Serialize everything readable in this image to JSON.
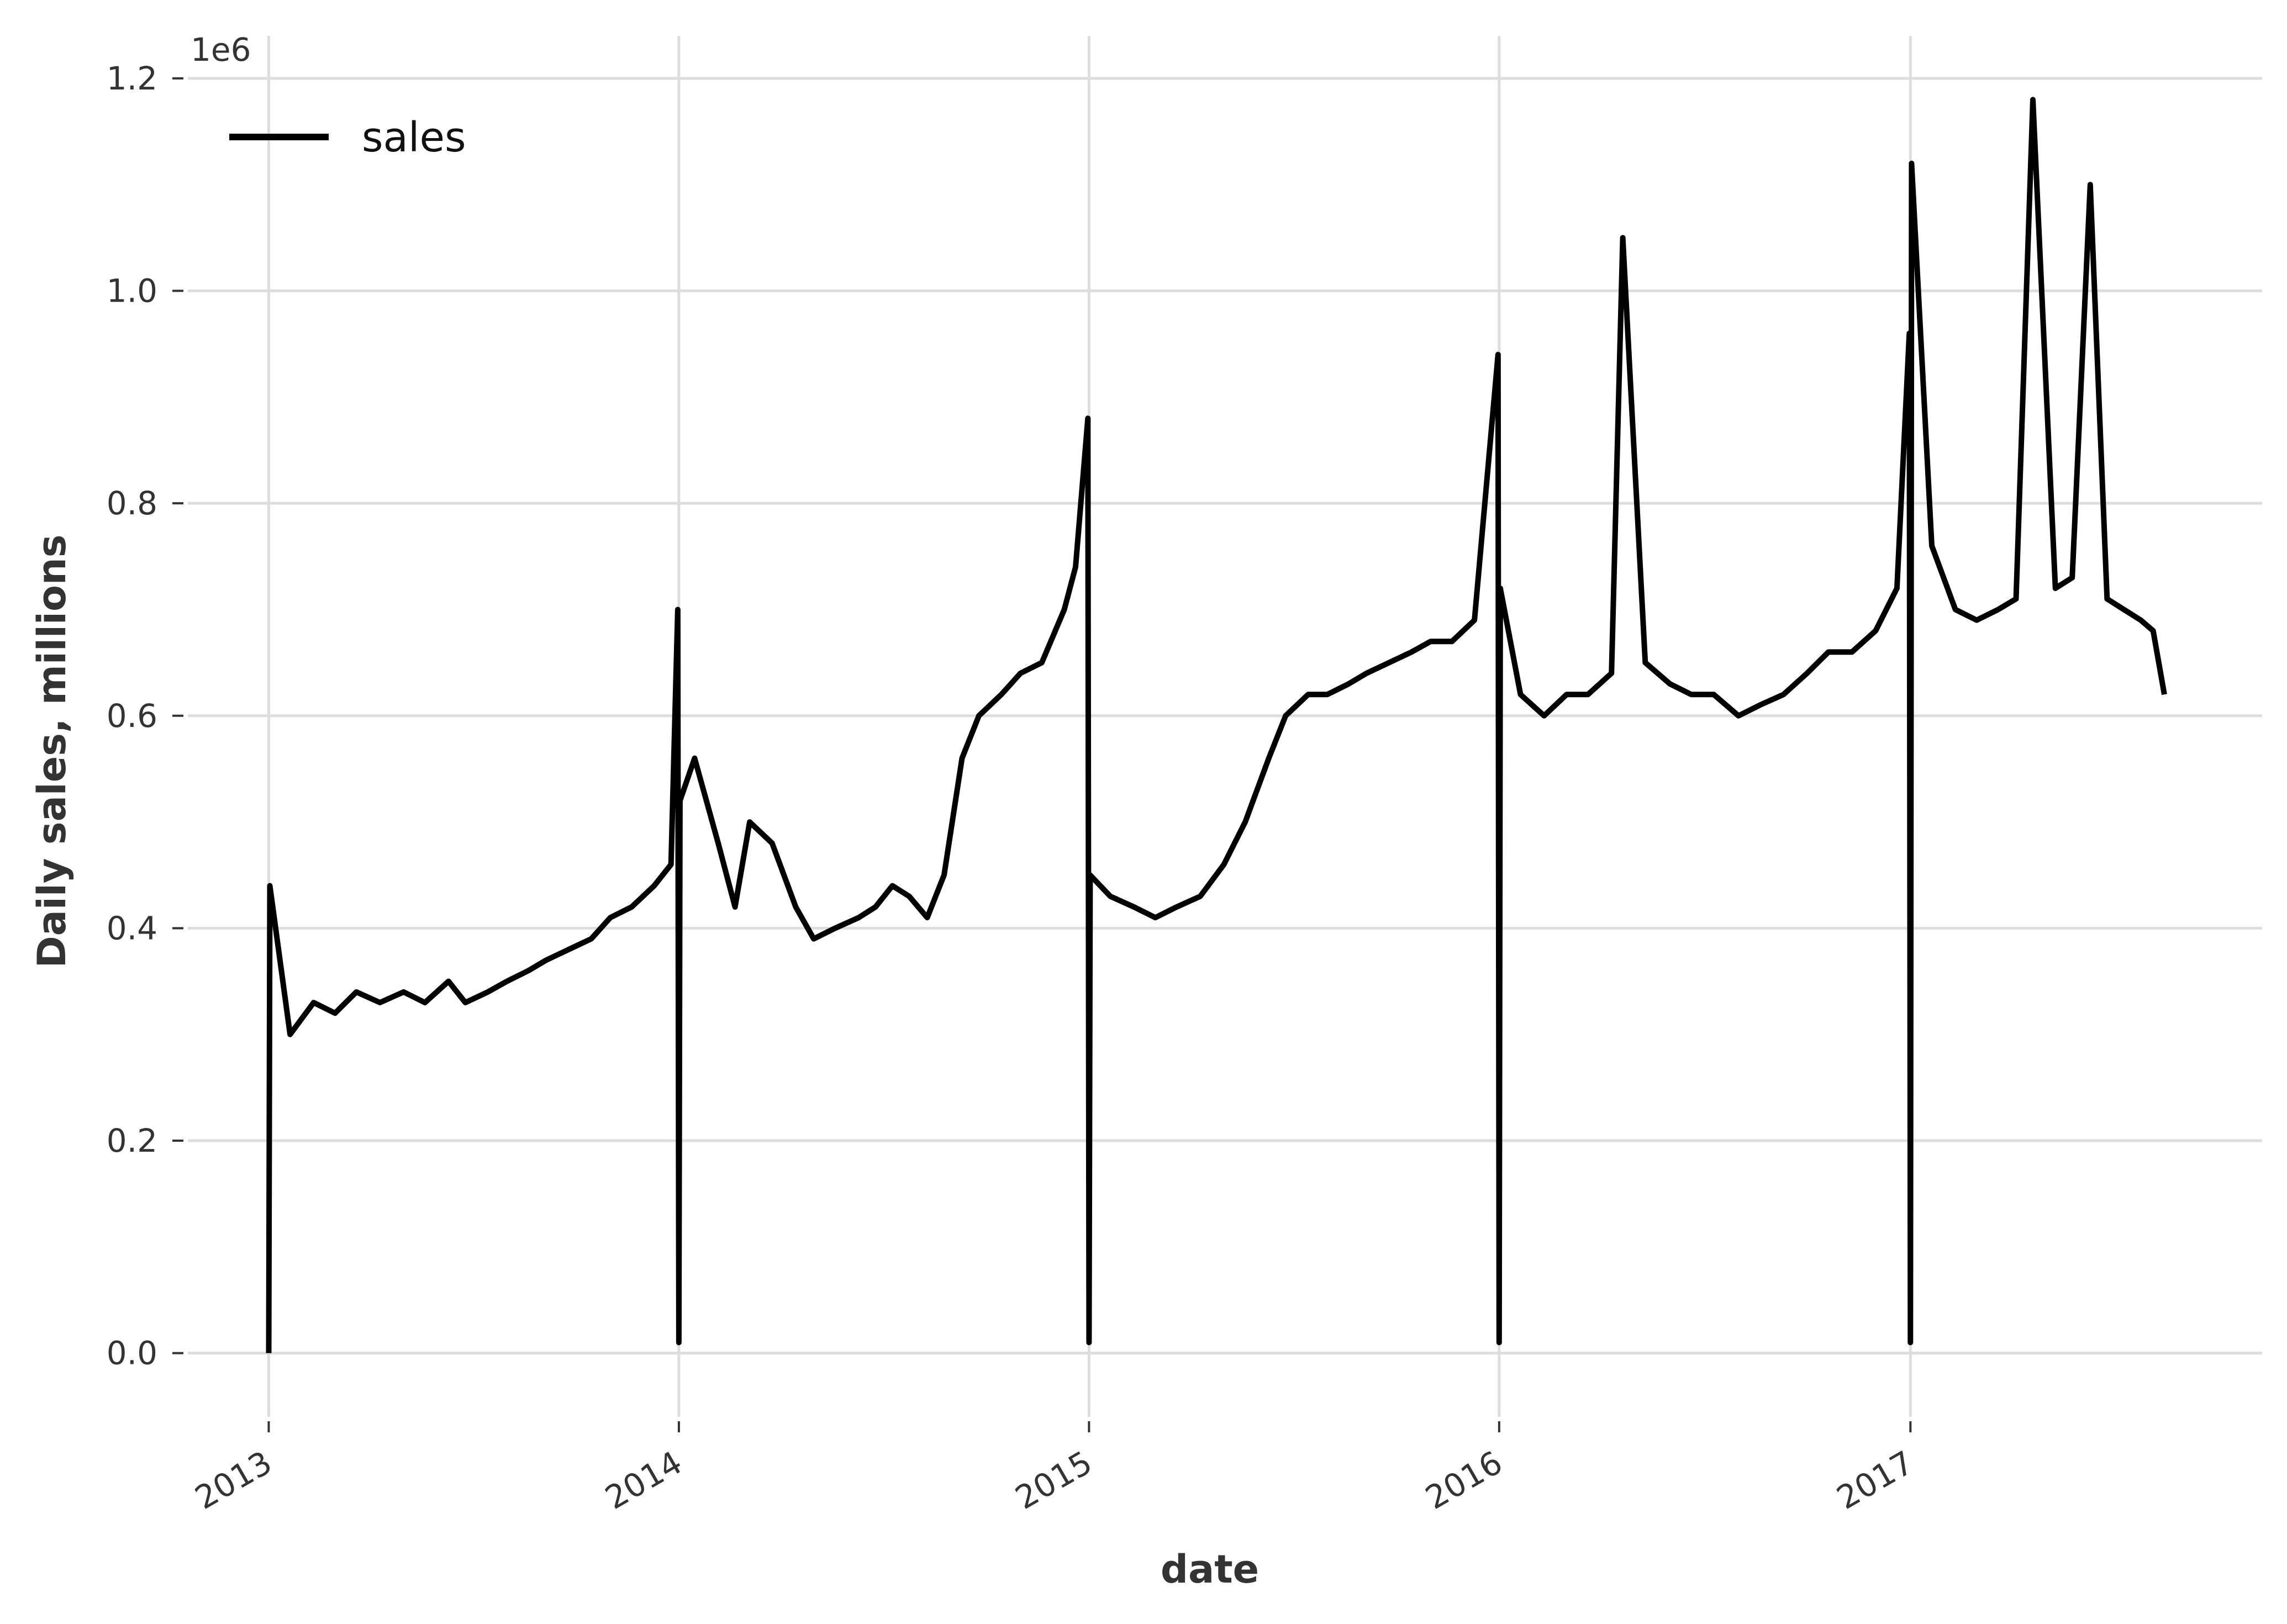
{
  "chart_data": {
    "type": "line",
    "xlabel": "date",
    "ylabel": "Daily sales, millions",
    "y_offset_text": "1e6",
    "ylim": [
      -60000,
      1240000
    ],
    "xlim": [
      "2012-10-21",
      "2017-11-10"
    ],
    "y_ticks": [
      0,
      200000,
      400000,
      600000,
      800000,
      1000000,
      1200000
    ],
    "y_tick_labels": [
      "0.0",
      "0.2",
      "0.4",
      "0.6",
      "0.8",
      "1.0",
      "1.2"
    ],
    "x_ticks": [
      "2013-01-01",
      "2014-01-01",
      "2015-01-01",
      "2016-01-01",
      "2017-01-01"
    ],
    "x_tick_labels": [
      "2013",
      "2014",
      "2015",
      "2016",
      "2017"
    ],
    "grid": true,
    "legend": {
      "position": "top-left",
      "entries": [
        "sales"
      ]
    },
    "colors": {
      "line": "#000000",
      "grid": "#dddddd",
      "text": "#333333"
    },
    "series": [
      {
        "name": "sales",
        "x": [
          "2013-01-01",
          "2013-01-02",
          "2013-01-20",
          "2013-02-10",
          "2013-03-01",
          "2013-03-20",
          "2013-04-10",
          "2013-05-01",
          "2013-05-20",
          "2013-06-10",
          "2013-06-25",
          "2013-07-15",
          "2013-08-01",
          "2013-08-20",
          "2013-09-05",
          "2013-09-25",
          "2013-10-15",
          "2013-11-01",
          "2013-11-20",
          "2013-12-10",
          "2013-12-25",
          "2013-12-31",
          "2014-01-01",
          "2014-01-02",
          "2014-01-15",
          "2014-02-05",
          "2014-02-20",
          "2014-03-05",
          "2014-03-25",
          "2014-04-15",
          "2014-05-01",
          "2014-05-20",
          "2014-06-10",
          "2014-06-25",
          "2014-07-10",
          "2014-07-25",
          "2014-08-10",
          "2014-08-25",
          "2014-09-10",
          "2014-09-25",
          "2014-10-15",
          "2014-11-01",
          "2014-11-20",
          "2014-12-10",
          "2014-12-20",
          "2014-12-31",
          "2015-01-01",
          "2015-01-02",
          "2015-01-20",
          "2015-02-10",
          "2015-03-01",
          "2015-03-20",
          "2015-04-10",
          "2015-05-01",
          "2015-05-20",
          "2015-06-10",
          "2015-06-25",
          "2015-07-15",
          "2015-08-01",
          "2015-08-20",
          "2015-09-05",
          "2015-09-25",
          "2015-10-15",
          "2015-11-01",
          "2015-11-20",
          "2015-12-10",
          "2015-12-31",
          "2016-01-01",
          "2016-01-02",
          "2016-01-20",
          "2016-02-10",
          "2016-03-01",
          "2016-03-20",
          "2016-04-10",
          "2016-04-20",
          "2016-05-10",
          "2016-06-01",
          "2016-06-20",
          "2016-07-10",
          "2016-08-01",
          "2016-08-20",
          "2016-09-10",
          "2016-10-01",
          "2016-10-20",
          "2016-11-10",
          "2016-12-01",
          "2016-12-20",
          "2016-12-31",
          "2017-01-01",
          "2017-01-02",
          "2017-01-20",
          "2017-02-10",
          "2017-03-01",
          "2017-03-20",
          "2017-04-05",
          "2017-04-20",
          "2017-05-10",
          "2017-05-25",
          "2017-06-10",
          "2017-06-25",
          "2017-07-10",
          "2017-07-25",
          "2017-08-05",
          "2017-08-15"
        ],
        "values": [
          0,
          440000,
          300000,
          330000,
          320000,
          340000,
          330000,
          340000,
          330000,
          350000,
          330000,
          340000,
          350000,
          360000,
          370000,
          380000,
          390000,
          410000,
          420000,
          440000,
          460000,
          700000,
          10000,
          520000,
          560000,
          480000,
          420000,
          500000,
          480000,
          420000,
          390000,
          400000,
          410000,
          420000,
          440000,
          430000,
          410000,
          450000,
          560000,
          600000,
          620000,
          640000,
          650000,
          700000,
          740000,
          880000,
          10000,
          450000,
          430000,
          420000,
          410000,
          420000,
          430000,
          460000,
          500000,
          560000,
          600000,
          620000,
          620000,
          630000,
          640000,
          650000,
          660000,
          670000,
          670000,
          690000,
          940000,
          10000,
          720000,
          620000,
          600000,
          620000,
          620000,
          640000,
          1050000,
          650000,
          630000,
          620000,
          620000,
          600000,
          610000,
          620000,
          640000,
          660000,
          660000,
          680000,
          720000,
          960000,
          10000,
          1120000,
          760000,
          700000,
          690000,
          700000,
          710000,
          1180000,
          720000,
          730000,
          1100000,
          710000,
          700000,
          690000,
          680000,
          620000
        ]
      }
    ]
  }
}
